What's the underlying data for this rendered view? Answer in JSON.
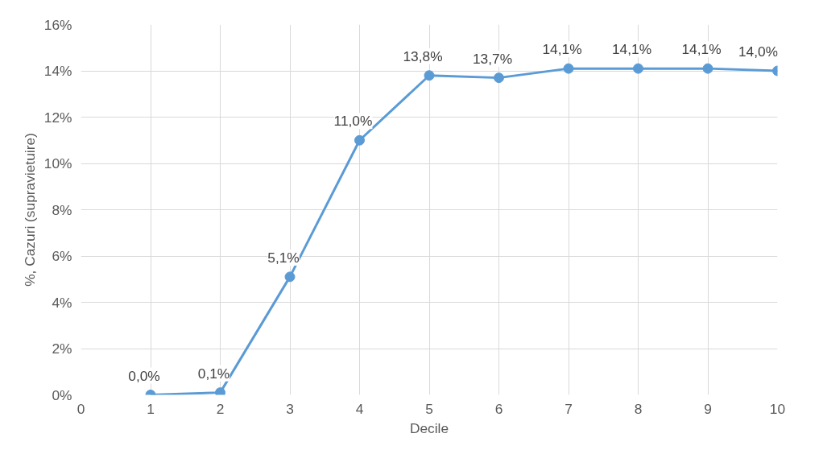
{
  "chart_data": {
    "type": "line",
    "xlabel": "Decile",
    "ylabel": "%, Cazuri (supravietuire)",
    "x": [
      1,
      2,
      3,
      4,
      5,
      6,
      7,
      8,
      9,
      10
    ],
    "series": [
      {
        "color": "#5b9bd5",
        "values": [
          0.0,
          0.1,
          5.1,
          11.0,
          13.8,
          13.7,
          14.1,
          14.1,
          14.1,
          14.0
        ],
        "value_labels": [
          "0,0%",
          "0,1%",
          "5,1%",
          "11,0%",
          "13,8%",
          "13,7%",
          "14,1%",
          "14,1%",
          "14,1%",
          "14,0%"
        ]
      }
    ],
    "xlim": [
      0,
      10
    ],
    "xticks": [
      0,
      1,
      2,
      3,
      4,
      5,
      6,
      7,
      8,
      9,
      10
    ],
    "ylim": [
      0,
      16
    ],
    "yticks": [
      {
        "value": 0,
        "label": "0%"
      },
      {
        "value": 2,
        "label": "2%"
      },
      {
        "value": 4,
        "label": "4%"
      },
      {
        "value": 6,
        "label": "6%"
      },
      {
        "value": 8,
        "label": "8%"
      },
      {
        "value": 10,
        "label": "10%"
      },
      {
        "value": 12,
        "label": "12%"
      },
      {
        "value": 14,
        "label": "14%"
      },
      {
        "value": 16,
        "label": "16%"
      }
    ],
    "grid": true,
    "marker": "circle",
    "line_style": "solid"
  }
}
